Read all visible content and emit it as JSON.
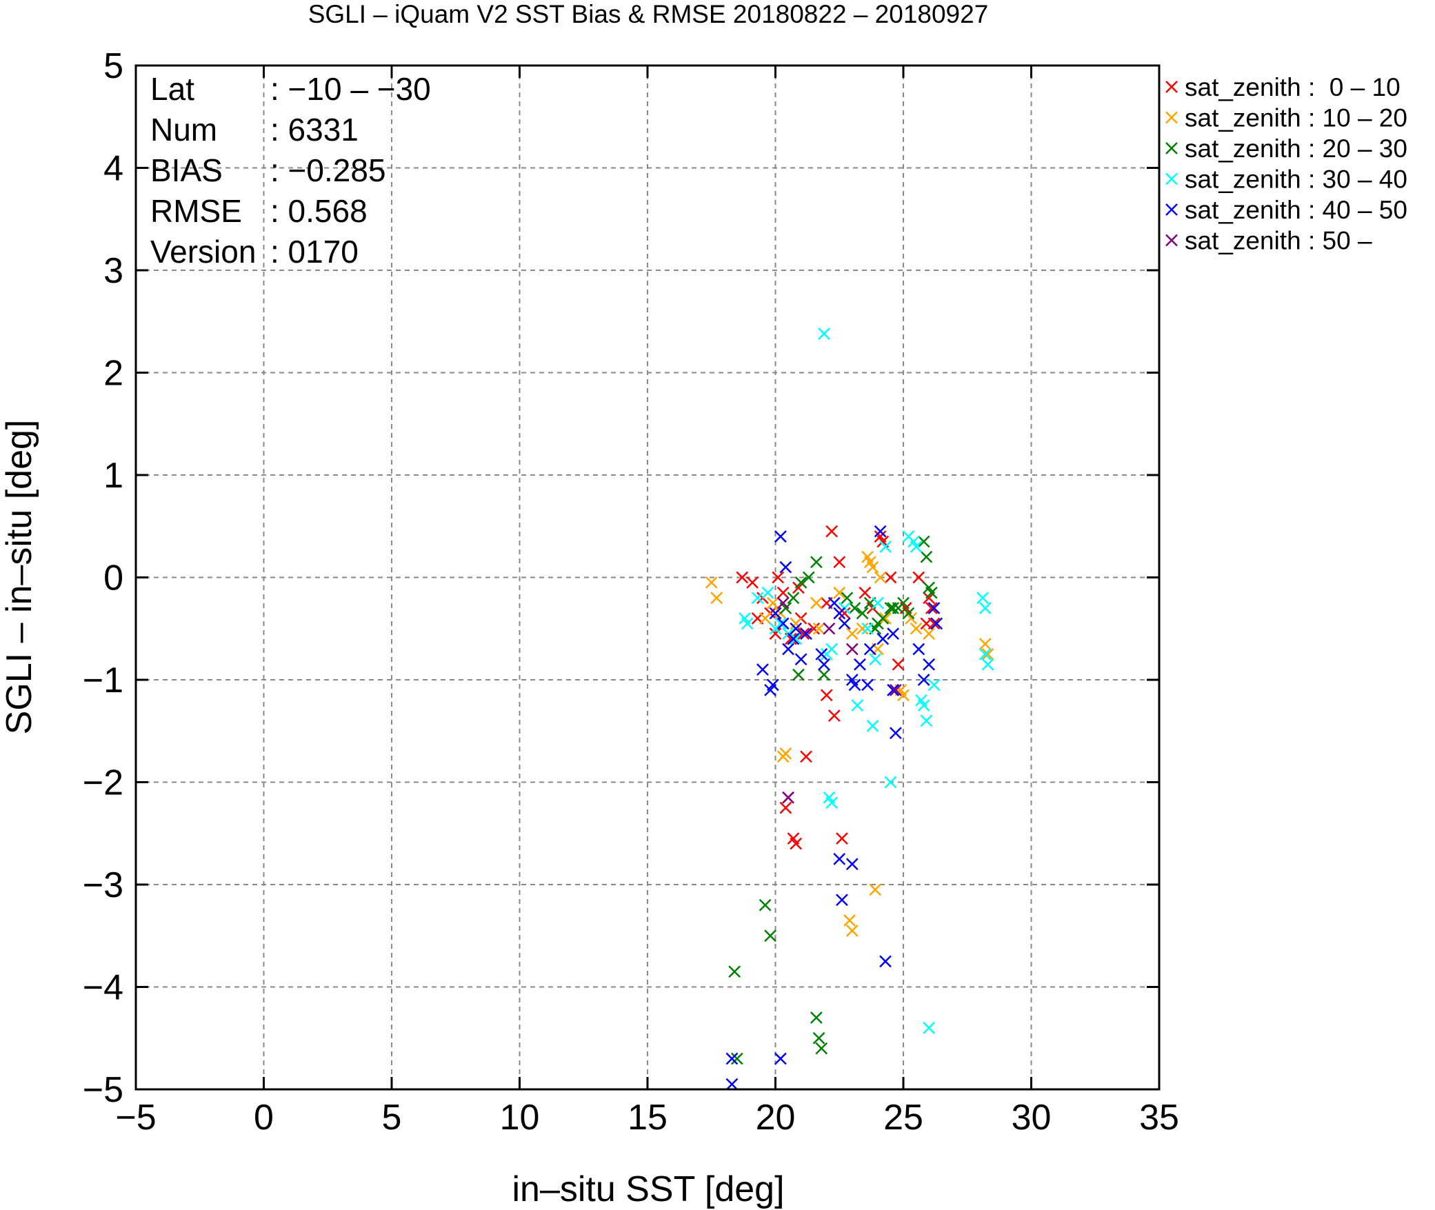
{
  "chart_data": {
    "type": "scatter",
    "title": "SGLI – iQuam V2 SST Bias & RMSE 20180822 – 20180927",
    "xlabel": "in–situ SST [deg]",
    "ylabel": "SGLI – in–situ [deg]",
    "xlim": [
      -5,
      35
    ],
    "ylim": [
      -5,
      5
    ],
    "xticks": [
      -5,
      0,
      5,
      10,
      15,
      20,
      25,
      30,
      35
    ],
    "xtick_labels": [
      "−5",
      "0",
      "5",
      "10",
      "15",
      "20",
      "25",
      "30",
      "35"
    ],
    "yticks": [
      -5,
      -4,
      -3,
      -2,
      -1,
      0,
      1,
      2,
      3,
      4,
      5
    ],
    "ytick_labels": [
      "−5",
      "−4",
      "−3",
      "−2",
      "−1",
      "0",
      "1",
      "2",
      "3",
      "4",
      "5"
    ],
    "grid": true,
    "legend_position": "outside-top-right",
    "stats": {
      "rows": [
        {
          "label": "Lat",
          "value": ": −10 – −30"
        },
        {
          "label": "Num",
          "value": ": 6331"
        },
        {
          "label": "BIAS",
          "value": ": −0.285"
        },
        {
          "label": "RMSE",
          "value": ": 0.568"
        },
        {
          "label": "Version",
          "value": ": 0170"
        }
      ]
    },
    "series": [
      {
        "name": "sat_zenith :  0 – 10",
        "color": "#ff0000",
        "points": [
          [
            18.7,
            0.0
          ],
          [
            19.1,
            -0.05
          ],
          [
            19.5,
            -0.2
          ],
          [
            19.8,
            -0.35
          ],
          [
            20.0,
            -0.55
          ],
          [
            20.1,
            0.0
          ],
          [
            20.3,
            -0.15
          ],
          [
            20.6,
            -0.6
          ],
          [
            21.0,
            -0.4
          ],
          [
            21.1,
            -0.55
          ],
          [
            21.5,
            -0.5
          ],
          [
            22.0,
            -0.25
          ],
          [
            22.2,
            0.45
          ],
          [
            22.5,
            0.15
          ],
          [
            22.7,
            -0.35
          ],
          [
            22.3,
            -1.35
          ],
          [
            22.0,
            -1.15
          ],
          [
            21.2,
            -1.75
          ],
          [
            20.4,
            -2.25
          ],
          [
            20.5,
            -2.15
          ],
          [
            20.7,
            -2.55
          ],
          [
            20.8,
            -2.6
          ],
          [
            22.6,
            -2.55
          ],
          [
            23.5,
            -0.15
          ],
          [
            23.8,
            -0.3
          ],
          [
            24.1,
            0.4
          ],
          [
            24.2,
            0.35
          ],
          [
            24.5,
            0.0
          ],
          [
            24.8,
            -0.85
          ],
          [
            25.1,
            -0.3
          ],
          [
            25.6,
            0.0
          ],
          [
            25.9,
            -0.45
          ],
          [
            26.0,
            -0.2
          ],
          [
            26.2,
            -0.45
          ],
          [
            24.6,
            -1.1
          ],
          [
            26.1,
            -0.3
          ],
          [
            20.9,
            -0.1
          ],
          [
            19.3,
            -0.4
          ]
        ]
      },
      {
        "name": "sat_zenith : 10 – 20",
        "color": "#ffa500",
        "points": [
          [
            17.5,
            -0.05
          ],
          [
            17.7,
            -0.2
          ],
          [
            19.6,
            -0.4
          ],
          [
            19.9,
            -0.25
          ],
          [
            20.2,
            -0.35
          ],
          [
            20.4,
            -1.72
          ],
          [
            20.3,
            -1.75
          ],
          [
            21.6,
            -0.25
          ],
          [
            22.5,
            -0.15
          ],
          [
            23.0,
            -0.55
          ],
          [
            23.4,
            -0.5
          ],
          [
            23.6,
            0.2
          ],
          [
            23.7,
            0.15
          ],
          [
            23.8,
            0.1
          ],
          [
            24.0,
            -0.7
          ],
          [
            24.1,
            0.0
          ],
          [
            24.3,
            -0.4
          ],
          [
            24.9,
            -1.1
          ],
          [
            25.0,
            -1.15
          ],
          [
            25.3,
            -0.4
          ],
          [
            25.5,
            -0.5
          ],
          [
            23.9,
            -3.05
          ],
          [
            22.9,
            -3.35
          ],
          [
            23.0,
            -3.45
          ],
          [
            28.2,
            -0.65
          ],
          [
            28.3,
            -0.75
          ],
          [
            26.0,
            -0.55
          ],
          [
            20.8,
            -0.45
          ],
          [
            21.7,
            -0.5
          ]
        ]
      },
      {
        "name": "sat_zenith : 20 – 30",
        "color": "#008000",
        "points": [
          [
            20.4,
            -0.3
          ],
          [
            20.7,
            -0.2
          ],
          [
            20.9,
            -0.95
          ],
          [
            21.0,
            -0.05
          ],
          [
            21.3,
            0.0
          ],
          [
            21.6,
            0.15
          ],
          [
            21.9,
            -0.95
          ],
          [
            22.8,
            -0.2
          ],
          [
            23.1,
            -0.3
          ],
          [
            23.4,
            -0.35
          ],
          [
            23.7,
            -0.25
          ],
          [
            23.9,
            -0.5
          ],
          [
            24.0,
            -0.45
          ],
          [
            24.2,
            -0.4
          ],
          [
            24.5,
            -0.3
          ],
          [
            24.8,
            -0.3
          ],
          [
            25.0,
            -0.25
          ],
          [
            25.2,
            -0.35
          ],
          [
            25.8,
            0.35
          ],
          [
            25.9,
            0.2
          ],
          [
            26.0,
            -0.1
          ],
          [
            26.1,
            -0.15
          ],
          [
            19.6,
            -3.2
          ],
          [
            19.8,
            -3.5
          ],
          [
            18.4,
            -3.85
          ],
          [
            21.6,
            -4.3
          ],
          [
            21.7,
            -4.5
          ],
          [
            21.8,
            -4.6
          ],
          [
            18.5,
            -4.7
          ],
          [
            23.9,
            -0.5
          ],
          [
            24.6,
            -0.3
          ]
        ]
      },
      {
        "name": "sat_zenith : 30 – 40",
        "color": "#00ffff",
        "points": [
          [
            21.9,
            2.38
          ],
          [
            18.8,
            -0.4
          ],
          [
            18.9,
            -0.45
          ],
          [
            19.3,
            -0.2
          ],
          [
            19.7,
            -0.15
          ],
          [
            20.0,
            -0.5
          ],
          [
            20.2,
            -0.45
          ],
          [
            20.5,
            -0.55
          ],
          [
            20.8,
            -0.6
          ],
          [
            22.0,
            -0.75
          ],
          [
            22.2,
            -0.7
          ],
          [
            22.7,
            -0.3
          ],
          [
            23.2,
            -1.25
          ],
          [
            23.6,
            -0.5
          ],
          [
            23.8,
            -1.45
          ],
          [
            24.0,
            -0.25
          ],
          [
            24.5,
            -2.0
          ],
          [
            25.2,
            0.4
          ],
          [
            25.4,
            0.35
          ],
          [
            25.5,
            0.3
          ],
          [
            25.7,
            -1.2
          ],
          [
            25.8,
            -1.25
          ],
          [
            25.9,
            -1.4
          ],
          [
            26.0,
            -4.4
          ],
          [
            22.1,
            -2.15
          ],
          [
            22.2,
            -2.2
          ],
          [
            28.1,
            -0.2
          ],
          [
            28.2,
            -0.3
          ],
          [
            28.3,
            -0.85
          ],
          [
            28.2,
            -0.75
          ],
          [
            26.2,
            -1.05
          ],
          [
            23.9,
            -0.8
          ],
          [
            24.3,
            0.3
          ]
        ]
      },
      {
        "name": "sat_zenith : 40 – 50",
        "color": "#0000ff",
        "points": [
          [
            20.2,
            0.4
          ],
          [
            20.4,
            0.1
          ],
          [
            19.5,
            -0.9
          ],
          [
            19.8,
            -1.1
          ],
          [
            19.9,
            -1.05
          ],
          [
            20.3,
            -0.45
          ],
          [
            20.5,
            -0.7
          ],
          [
            20.7,
            -0.6
          ],
          [
            20.8,
            -0.5
          ],
          [
            21.0,
            -0.8
          ],
          [
            21.8,
            -0.75
          ],
          [
            21.9,
            -0.85
          ],
          [
            22.3,
            -0.25
          ],
          [
            22.5,
            -0.35
          ],
          [
            22.7,
            -0.45
          ],
          [
            23.0,
            -1.0
          ],
          [
            23.1,
            -1.05
          ],
          [
            23.3,
            -0.85
          ],
          [
            23.6,
            -1.05
          ],
          [
            23.7,
            -0.7
          ],
          [
            24.1,
            0.45
          ],
          [
            24.2,
            -0.6
          ],
          [
            24.6,
            -0.55
          ],
          [
            24.7,
            -1.52
          ],
          [
            25.6,
            -0.7
          ],
          [
            25.8,
            -1.0
          ],
          [
            26.0,
            -0.85
          ],
          [
            26.2,
            -0.3
          ],
          [
            26.3,
            -0.45
          ],
          [
            22.5,
            -2.75
          ],
          [
            23.0,
            -2.8
          ],
          [
            22.6,
            -3.15
          ],
          [
            24.3,
            -3.75
          ],
          [
            18.3,
            -4.7
          ],
          [
            20.2,
            -4.7
          ],
          [
            18.3,
            -4.95
          ],
          [
            24.6,
            -1.1
          ],
          [
            20.0,
            -0.35
          ],
          [
            21.2,
            -0.55
          ]
        ]
      },
      {
        "name": "sat_zenith : 50 –",
        "color": "#800080",
        "points": [
          [
            20.5,
            -2.15
          ],
          [
            24.7,
            -1.1
          ],
          [
            22.1,
            -0.5
          ],
          [
            23.0,
            -0.7
          ],
          [
            20.3,
            -0.25
          ]
        ]
      }
    ]
  }
}
